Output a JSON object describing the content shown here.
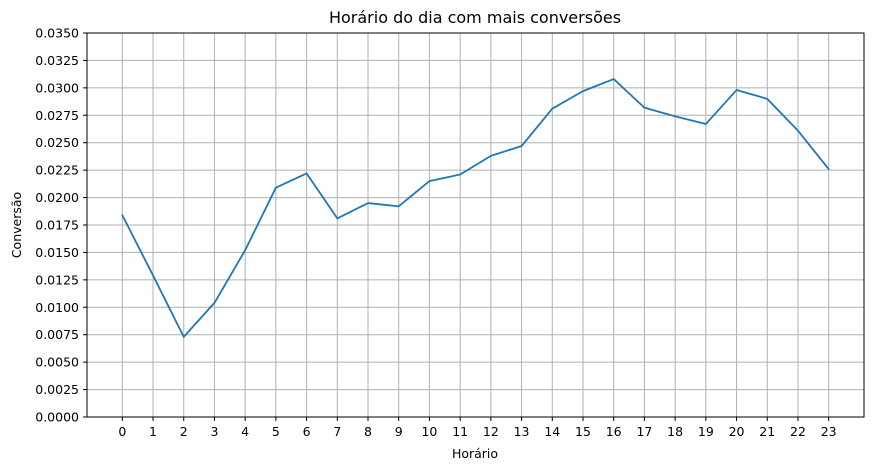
{
  "chart_data": {
    "type": "line",
    "title": "Horário do dia com mais conversões",
    "xlabel": "Horário",
    "ylabel": "Conversão",
    "x": [
      0,
      1,
      2,
      3,
      4,
      5,
      6,
      7,
      8,
      9,
      10,
      11,
      12,
      13,
      14,
      15,
      16,
      17,
      18,
      19,
      20,
      21,
      22,
      23
    ],
    "x_tick_labels": [
      "0",
      "1",
      "2",
      "3",
      "4",
      "5",
      "6",
      "7",
      "8",
      "9",
      "10",
      "11",
      "12",
      "13",
      "14",
      "15",
      "16",
      "17",
      "18",
      "19",
      "20",
      "21",
      "22",
      "23"
    ],
    "xlim": [
      -1.15,
      24.15
    ],
    "ylim": [
      0,
      0.035
    ],
    "y_ticks": [
      0.0,
      0.0025,
      0.005,
      0.0075,
      0.01,
      0.0125,
      0.015,
      0.0175,
      0.02,
      0.0225,
      0.025,
      0.0275,
      0.03,
      0.0325,
      0.035
    ],
    "y_tick_labels": [
      "0.0000",
      "0.0025",
      "0.0050",
      "0.0075",
      "0.0100",
      "0.0125",
      "0.0150",
      "0.0175",
      "0.0200",
      "0.0225",
      "0.0250",
      "0.0275",
      "0.0300",
      "0.0325",
      "0.0350"
    ],
    "grid": true,
    "line_color": "#1f77b4",
    "grid_color": "#b0b0b0",
    "series": [
      {
        "values": [
          0.0184,
          0.0129,
          0.0073,
          0.0104,
          0.0152,
          0.0209,
          0.0222,
          0.0181,
          0.0195,
          0.0192,
          0.0215,
          0.0221,
          0.0238,
          0.0247,
          0.0281,
          0.0297,
          0.0308,
          0.0282,
          0.0274,
          0.0267,
          0.0298,
          0.029,
          0.0261,
          0.0226
        ]
      }
    ]
  }
}
